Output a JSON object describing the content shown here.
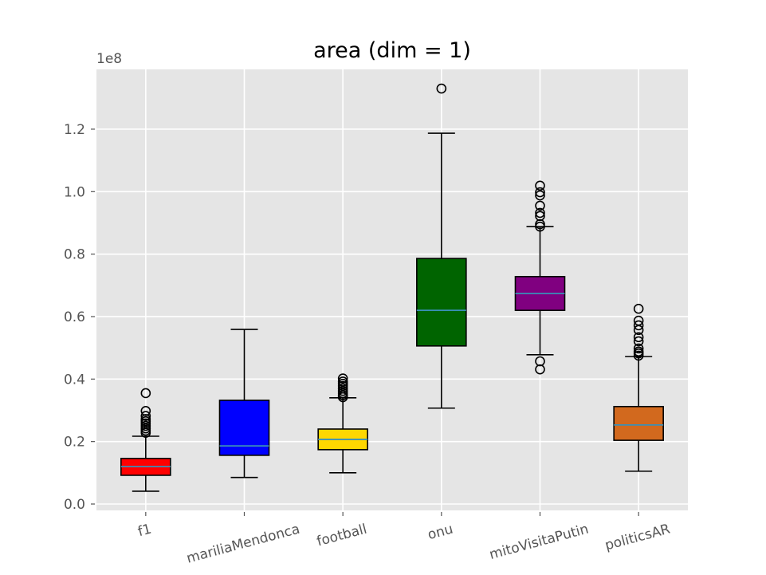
{
  "chart_data": {
    "type": "boxplot",
    "title": "area (dim = 1)",
    "xlabel": "",
    "ylabel": "",
    "y_offset_label": "1e8",
    "ylim": [
      -0.02,
      1.39
    ],
    "y_ticks": [
      0.0,
      0.2,
      0.4,
      0.6,
      0.8,
      1.0,
      1.2
    ],
    "y_tick_labels": [
      "0.0",
      "0.2",
      "0.4",
      "0.6",
      "0.8",
      "1.0",
      "1.2"
    ],
    "grid": true,
    "x_tick_rotation_deg": 15,
    "categories": [
      "f1",
      "mariliaMendonca",
      "football",
      "onu",
      "mitoVisitaPutin",
      "politicsAR"
    ],
    "series": [
      {
        "name": "f1",
        "color": "#ff0000",
        "whisker_low": 0.041,
        "q1": 0.092,
        "median": 0.12,
        "q3": 0.146,
        "whisker_high": 0.217,
        "fliers": [
          0.228,
          0.235,
          0.242,
          0.25,
          0.258,
          0.265,
          0.272,
          0.282,
          0.298,
          0.355
        ]
      },
      {
        "name": "mariliaMendonca",
        "color": "#0000ff",
        "whisker_low": 0.085,
        "q1": 0.156,
        "median": 0.186,
        "q3": 0.332,
        "whisker_high": 0.559,
        "fliers": []
      },
      {
        "name": "football",
        "color": "#ffd700",
        "whisker_low": 0.1,
        "q1": 0.174,
        "median": 0.207,
        "q3": 0.24,
        "whisker_high": 0.34,
        "fliers": [
          0.342,
          0.348,
          0.355,
          0.362,
          0.37,
          0.378,
          0.385,
          0.392,
          0.402
        ]
      },
      {
        "name": "onu",
        "color": "#006400",
        "whisker_low": 0.307,
        "q1": 0.506,
        "median": 0.62,
        "q3": 0.786,
        "whisker_high": 1.187,
        "fliers": [
          1.33
        ]
      },
      {
        "name": "mitoVisitaPutin",
        "color": "#800080",
        "whisker_low": 0.478,
        "q1": 0.62,
        "median": 0.674,
        "q3": 0.728,
        "whisker_high": 0.888,
        "fliers": [
          0.431,
          0.457,
          0.888,
          0.896,
          0.922,
          0.932,
          0.955,
          0.988,
          0.998,
          1.019
        ]
      },
      {
        "name": "politicsAR",
        "color": "#d2691e",
        "whisker_low": 0.105,
        "q1": 0.204,
        "median": 0.253,
        "q3": 0.312,
        "whisker_high": 0.472,
        "fliers": [
          0.475,
          0.482,
          0.488,
          0.498,
          0.521,
          0.534,
          0.557,
          0.572,
          0.587,
          0.625
        ]
      }
    ],
    "median_color": "#3a8fb7",
    "background_color": "#e5e5e5",
    "grid_color": "#ffffff"
  }
}
